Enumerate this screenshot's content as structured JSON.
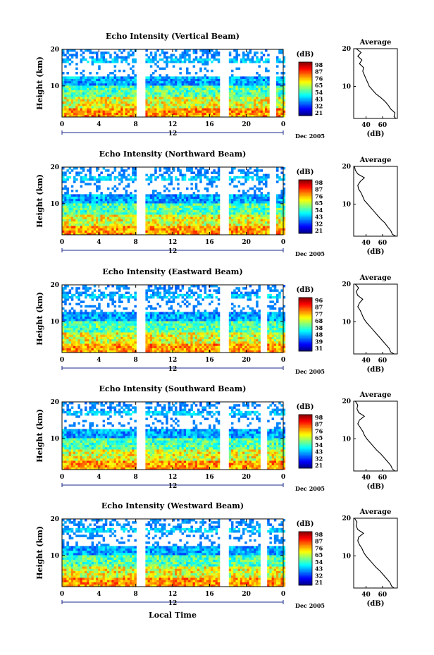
{
  "chart_data": [
    {
      "type": "heatmap",
      "title": "Echo Intensity (Vertical Beam)",
      "ylabel": "Height (km)",
      "xlabel": "",
      "x_ticks": [
        "0",
        "4",
        "8",
        "12",
        "16",
        "20",
        "0"
      ],
      "xlim": [
        0,
        24
      ],
      "y_ticks": [
        "10",
        "20"
      ],
      "ylim": [
        1.5,
        20
      ],
      "date_marker": "12",
      "date_label": "Dec 2005",
      "data_gaps": [
        [
          8,
          9
        ],
        [
          17,
          18
        ],
        [
          22.5,
          23.2
        ]
      ],
      "colorbar": {
        "unit": "(dB)",
        "ticks": [
          "98",
          "87",
          "76",
          "65",
          "54",
          "43",
          "32",
          "21"
        ]
      },
      "average_profile": {
        "title": "Average",
        "xlabel": "(dB)",
        "x_ticks": [
          "40",
          "60"
        ],
        "y_ticks": [
          "10",
          "20"
        ],
        "points": [
          [
            76,
            1.5
          ],
          [
            74,
            2
          ],
          [
            75,
            3
          ],
          [
            70,
            4
          ],
          [
            67,
            5
          ],
          [
            63,
            6
          ],
          [
            58,
            7
          ],
          [
            52,
            8
          ],
          [
            48,
            9
          ],
          [
            44,
            10
          ],
          [
            42,
            11
          ],
          [
            40,
            12
          ],
          [
            38,
            13
          ],
          [
            36,
            14
          ],
          [
            37,
            15
          ],
          [
            32,
            16
          ],
          [
            35,
            17
          ],
          [
            30,
            18
          ],
          [
            34,
            19
          ],
          [
            28,
            20
          ]
        ]
      }
    },
    {
      "type": "heatmap",
      "title": "Echo Intensity (Northward Beam)",
      "ylabel": "Height (km)",
      "xlabel": "",
      "x_ticks": [
        "0",
        "4",
        "8",
        "12",
        "16",
        "20",
        "0"
      ],
      "xlim": [
        0,
        24
      ],
      "y_ticks": [
        "10",
        "20"
      ],
      "ylim": [
        1.5,
        20
      ],
      "date_marker": "12",
      "date_label": "Dec 2005",
      "data_gaps": [
        [
          8,
          9
        ],
        [
          17,
          18
        ],
        [
          22.5,
          23.2
        ]
      ],
      "colorbar": {
        "unit": "(dB)",
        "ticks": [
          "98",
          "87",
          "76",
          "65",
          "54",
          "43",
          "32",
          "21"
        ]
      },
      "average_profile": {
        "title": "Average",
        "xlabel": "(dB)",
        "x_ticks": [
          "40",
          "60"
        ],
        "y_ticks": [
          "10",
          "20"
        ],
        "points": [
          [
            76,
            1.5
          ],
          [
            72,
            2
          ],
          [
            70,
            3
          ],
          [
            66,
            4
          ],
          [
            63,
            5
          ],
          [
            58,
            6
          ],
          [
            54,
            7
          ],
          [
            50,
            8
          ],
          [
            46,
            9
          ],
          [
            42,
            10
          ],
          [
            38,
            11
          ],
          [
            36,
            12
          ],
          [
            34,
            13
          ],
          [
            31,
            14
          ],
          [
            30,
            15
          ],
          [
            33,
            16
          ],
          [
            38,
            17
          ],
          [
            30,
            18
          ],
          [
            27,
            19
          ],
          [
            26,
            20
          ]
        ]
      }
    },
    {
      "type": "heatmap",
      "title": "Echo Intensity (Eastward Beam)",
      "ylabel": "Height (km)",
      "xlabel": "",
      "x_ticks": [
        "0",
        "4",
        "8",
        "12",
        "16",
        "20",
        "0"
      ],
      "xlim": [
        0,
        24
      ],
      "y_ticks": [
        "10",
        "20"
      ],
      "ylim": [
        1.5,
        20
      ],
      "date_marker": "12",
      "date_label": "Dec 2005",
      "data_gaps": [
        [
          8,
          9
        ],
        [
          17,
          18
        ],
        [
          21.5,
          22.2
        ]
      ],
      "colorbar": {
        "unit": "(dB)",
        "ticks": [
          "96",
          "87",
          "77",
          "68",
          "58",
          "48",
          "39",
          "31"
        ]
      },
      "average_profile": {
        "title": "Average",
        "xlabel": "(dB)",
        "x_ticks": [
          "40",
          "60"
        ],
        "y_ticks": [
          "10",
          "20"
        ],
        "points": [
          [
            74,
            1.5
          ],
          [
            70,
            2
          ],
          [
            68,
            3
          ],
          [
            64,
            4
          ],
          [
            60,
            5
          ],
          [
            56,
            6
          ],
          [
            52,
            7
          ],
          [
            48,
            8
          ],
          [
            44,
            9
          ],
          [
            40,
            10
          ],
          [
            37,
            11
          ],
          [
            35,
            12
          ],
          [
            33,
            13
          ],
          [
            30,
            14
          ],
          [
            32,
            15
          ],
          [
            36,
            16
          ],
          [
            30,
            17
          ],
          [
            28,
            18
          ],
          [
            31,
            19
          ],
          [
            27,
            20
          ]
        ]
      }
    },
    {
      "type": "heatmap",
      "title": "Echo Intensity (Southward Beam)",
      "ylabel": "Height (km)",
      "xlabel": "",
      "x_ticks": [
        "0",
        "4",
        "8",
        "12",
        "16",
        "20",
        "0"
      ],
      "xlim": [
        0,
        24
      ],
      "y_ticks": [
        "10",
        "20"
      ],
      "ylim": [
        1.5,
        20
      ],
      "date_marker": "12",
      "date_label": "Dec 2005",
      "data_gaps": [
        [
          8,
          9
        ],
        [
          17,
          18
        ],
        [
          21.5,
          22.2
        ]
      ],
      "colorbar": {
        "unit": "(dB)",
        "ticks": [
          "98",
          "87",
          "76",
          "65",
          "54",
          "43",
          "32",
          "21"
        ]
      },
      "average_profile": {
        "title": "Average",
        "xlabel": "(dB)",
        "x_ticks": [
          "40",
          "60"
        ],
        "y_ticks": [
          "10",
          "20"
        ],
        "points": [
          [
            75,
            1.5
          ],
          [
            72,
            2
          ],
          [
            70,
            3
          ],
          [
            66,
            4
          ],
          [
            62,
            5
          ],
          [
            58,
            6
          ],
          [
            53,
            7
          ],
          [
            49,
            8
          ],
          [
            45,
            9
          ],
          [
            41,
            10
          ],
          [
            38,
            11
          ],
          [
            36,
            12
          ],
          [
            33,
            13
          ],
          [
            30,
            14
          ],
          [
            32,
            15
          ],
          [
            38,
            16
          ],
          [
            31,
            17
          ],
          [
            29,
            18
          ],
          [
            30,
            19
          ],
          [
            27,
            20
          ]
        ]
      }
    },
    {
      "type": "heatmap",
      "title": "Echo Intensity (Westward Beam)",
      "ylabel": "Height (km)",
      "xlabel": "Local Time",
      "x_ticks": [
        "0",
        "4",
        "8",
        "12",
        "16",
        "20",
        "0"
      ],
      "xlim": [
        0,
        24
      ],
      "y_ticks": [
        "10",
        "20"
      ],
      "ylim": [
        1.5,
        20
      ],
      "date_marker": "12",
      "date_label": "Dec 2005",
      "data_gaps": [
        [
          8,
          9
        ],
        [
          17,
          18
        ],
        [
          21.5,
          22.2
        ]
      ],
      "colorbar": {
        "unit": "(dB)",
        "ticks": [
          "98",
          "87",
          "76",
          "65",
          "54",
          "43",
          "32",
          "21"
        ]
      },
      "average_profile": {
        "title": "Average",
        "xlabel": "(dB)",
        "x_ticks": [
          "40",
          "60"
        ],
        "y_ticks": [
          "10",
          "20"
        ],
        "points": [
          [
            74,
            1.5
          ],
          [
            71,
            2
          ],
          [
            69,
            3
          ],
          [
            65,
            4
          ],
          [
            61,
            5
          ],
          [
            57,
            6
          ],
          [
            52,
            7
          ],
          [
            48,
            8
          ],
          [
            44,
            9
          ],
          [
            40,
            10
          ],
          [
            37,
            11
          ],
          [
            35,
            12
          ],
          [
            32,
            13
          ],
          [
            30,
            14
          ],
          [
            31,
            15
          ],
          [
            37,
            16
          ],
          [
            30,
            17
          ],
          [
            28,
            18
          ],
          [
            29,
            19
          ],
          [
            26,
            20
          ]
        ]
      }
    }
  ]
}
